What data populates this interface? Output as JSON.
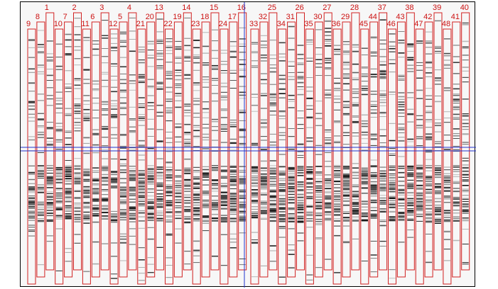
{
  "image_title": "",
  "colors": {
    "lane_outline": "#d02020",
    "label": "#cc1111",
    "crosshair": "#2233cc",
    "band": "#111111",
    "background": "#f7f7f7"
  },
  "crosshair": {
    "vertical_label": "",
    "horizontal_label": ""
  },
  "lanes": [
    {
      "label": "9"
    },
    {
      "label": "8"
    },
    {
      "label": "1"
    },
    {
      "label": "10"
    },
    {
      "label": "7"
    },
    {
      "label": "2"
    },
    {
      "label": "11"
    },
    {
      "label": "6"
    },
    {
      "label": "3"
    },
    {
      "label": "12"
    },
    {
      "label": "5"
    },
    {
      "label": "4"
    },
    {
      "label": "21"
    },
    {
      "label": "20"
    },
    {
      "label": "13"
    },
    {
      "label": "22"
    },
    {
      "label": "19"
    },
    {
      "label": "14"
    },
    {
      "label": "23"
    },
    {
      "label": "18"
    },
    {
      "label": "15"
    },
    {
      "label": "24"
    },
    {
      "label": "17"
    },
    {
      "label": "16"
    },
    {
      "label": "33"
    },
    {
      "label": "32"
    },
    {
      "label": "25"
    },
    {
      "label": "34"
    },
    {
      "label": "31"
    },
    {
      "label": "26"
    },
    {
      "label": "35"
    },
    {
      "label": "30"
    },
    {
      "label": "27"
    },
    {
      "label": "36"
    },
    {
      "label": "29"
    },
    {
      "label": "28"
    },
    {
      "label": "45"
    },
    {
      "label": "44"
    },
    {
      "label": "37"
    },
    {
      "label": "46"
    },
    {
      "label": "43"
    },
    {
      "label": "38"
    },
    {
      "label": "47"
    },
    {
      "label": "42"
    },
    {
      "label": "39"
    },
    {
      "label": "48"
    },
    {
      "label": "41"
    },
    {
      "label": "40"
    }
  ]
}
